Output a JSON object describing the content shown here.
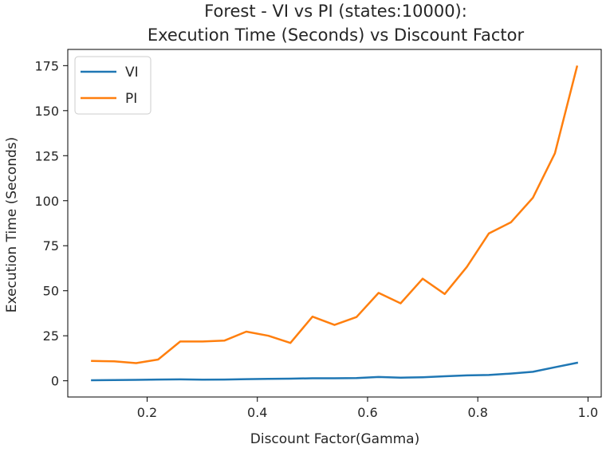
{
  "chart_data": {
    "type": "line",
    "title": [
      "Forest - VI vs PI (states:10000):",
      "Execution Time (Seconds) vs Discount Factor"
    ],
    "xlabel": "Discount Factor(Gamma)",
    "ylabel": "Execution Time (Seconds)",
    "xlim": [
      0.056,
      1.024
    ],
    "ylim": [
      -9,
      184
    ],
    "xticks": [
      0.2,
      0.4,
      0.6,
      0.8,
      1.0
    ],
    "xtick_labels": [
      "0.2",
      "0.4",
      "0.6",
      "0.8",
      "1.0"
    ],
    "yticks": [
      0,
      25,
      50,
      75,
      100,
      125,
      150,
      175
    ],
    "ytick_labels": [
      "0",
      "25",
      "50",
      "75",
      "100",
      "125",
      "150",
      "175"
    ],
    "grid": false,
    "legend_position": "top-left",
    "x": [
      0.1,
      0.14,
      0.18,
      0.22,
      0.26,
      0.3,
      0.34,
      0.38,
      0.42,
      0.46,
      0.5,
      0.54,
      0.58,
      0.62,
      0.66,
      0.7,
      0.74,
      0.78,
      0.82,
      0.86,
      0.9,
      0.94,
      0.98
    ],
    "series": [
      {
        "name": "VI",
        "color": "#1f77b4",
        "values": [
          0.3,
          0.4,
          0.5,
          0.7,
          0.8,
          0.6,
          0.7,
          0.9,
          1.1,
          1.2,
          1.4,
          1.4,
          1.5,
          2.1,
          1.7,
          2.0,
          2.5,
          3.0,
          3.2,
          4.0,
          5.0,
          7.5,
          10.0
        ]
      },
      {
        "name": "PI",
        "color": "#ff7f0e",
        "values": [
          11.0,
          10.8,
          9.8,
          11.8,
          21.8,
          21.8,
          22.3,
          27.3,
          25.0,
          21.0,
          35.6,
          31.0,
          35.4,
          48.8,
          43.0,
          56.7,
          48.2,
          63.2,
          81.8,
          88.0,
          101.6,
          126.3,
          174.5
        ]
      }
    ]
  }
}
